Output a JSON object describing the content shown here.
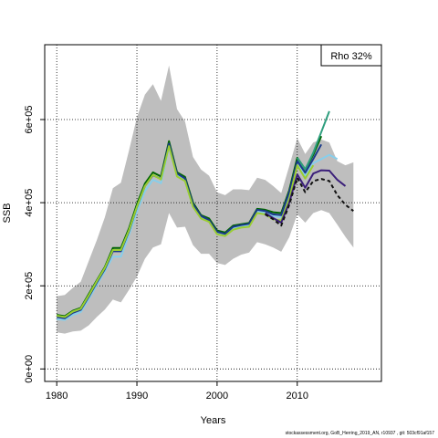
{
  "chart_data": {
    "type": "line",
    "xlabel": "Years",
    "ylabel": "SSB",
    "xlim": [
      1978.5,
      2020.5
    ],
    "ylim": [
      -30000,
      780000
    ],
    "x_ticks": [
      1980,
      1990,
      2000,
      2010
    ],
    "y_ticks": [
      {
        "value": 0,
        "label": "0e+00"
      },
      {
        "value": 200000,
        "label": "2e+05"
      },
      {
        "value": 400000,
        "label": "4e+05"
      },
      {
        "value": 600000,
        "label": "6e+05"
      }
    ],
    "grid": true,
    "legend": {
      "text": "Rho 32%",
      "position": "top-right"
    },
    "confidence_band": {
      "color": "#bebebe",
      "x": [
        1980,
        1981,
        1982,
        1983,
        1984,
        1985,
        1986,
        1987,
        1988,
        1989,
        1990,
        1991,
        1992,
        1993,
        1994,
        1995,
        1996,
        1997,
        1998,
        1999,
        2000,
        2001,
        2002,
        2003,
        2004,
        2005,
        2006,
        2007,
        2008,
        2009,
        2010,
        2011,
        2012,
        2013,
        2014,
        2015,
        2016,
        2017
      ],
      "upper": [
        175000,
        178000,
        195000,
        210000,
        260000,
        310000,
        365000,
        435000,
        448000,
        525000,
        605000,
        660000,
        685000,
        645000,
        730000,
        625000,
        595000,
        510000,
        480000,
        465000,
        425000,
        418000,
        432000,
        432000,
        430000,
        460000,
        455000,
        440000,
        423000,
        488000,
        555000,
        517000,
        545000,
        552000,
        545000,
        500000,
        490000,
        497000
      ],
      "lower": [
        88000,
        85000,
        90000,
        92000,
        105000,
        125000,
        143000,
        167000,
        160000,
        190000,
        222000,
        265000,
        292000,
        300000,
        375000,
        340000,
        342000,
        298000,
        277000,
        277000,
        255000,
        250000,
        265000,
        275000,
        280000,
        305000,
        300000,
        292000,
        282000,
        317000,
        372000,
        352000,
        375000,
        382000,
        375000,
        347000,
        318000,
        292000
      ]
    },
    "series": [
      {
        "color": "#006400",
        "style": "solid",
        "x": [
          1980,
          1981,
          1982,
          1983,
          1984,
          1985,
          1986,
          1987,
          1988,
          1989,
          1990,
          1991,
          1992,
          1993,
          1994,
          1995,
          1996,
          1997,
          1998,
          1999,
          2000,
          2001,
          2002,
          2003,
          2004,
          2005,
          2006,
          2007,
          2008,
          2009,
          2010,
          2011,
          2012,
          2013
        ],
        "values": [
          130000,
          127000,
          140000,
          147000,
          180000,
          213000,
          245000,
          291000,
          291000,
          338000,
          396000,
          446000,
          473000,
          463000,
          548000,
          473000,
          462000,
          400000,
          370000,
          362000,
          333000,
          328000,
          345000,
          348000,
          351000,
          385000,
          383000,
          377000,
          375000,
          430000,
          508000,
          480000,
          515000,
          560000
        ]
      },
      {
        "color": "#2e9e7e",
        "style": "solid",
        "x": [
          2010,
          2011,
          2012,
          2013,
          2014
        ],
        "values": [
          508000,
          480000,
          520000,
          570000,
          620000
        ]
      },
      {
        "color": "#87ceeb",
        "style": "solid",
        "x": [
          1980,
          1981,
          1982,
          1983,
          1984,
          1985,
          1986,
          1987,
          1988,
          1989,
          1990,
          1991,
          1992,
          1993,
          1994,
          1995,
          1996,
          1997,
          1998,
          1999,
          2000,
          2001,
          2002,
          2003,
          2004,
          2005,
          2006,
          2007,
          2008,
          2009,
          2010,
          2011,
          2012,
          2013,
          2014,
          2015
        ],
        "values": [
          120000,
          118000,
          130000,
          137000,
          168000,
          202000,
          235000,
          270000,
          270000,
          322000,
          378000,
          428000,
          455000,
          447000,
          535000,
          465000,
          453000,
          390000,
          365000,
          355000,
          327000,
          322000,
          338000,
          343000,
          346000,
          380000,
          375000,
          368000,
          365000,
          420000,
          492000,
          465000,
          495000,
          505000,
          515000,
          505000
        ]
      },
      {
        "color": "#1a3a8a",
        "style": "solid",
        "x": [
          1980,
          1981,
          1982,
          1983,
          1984,
          1985,
          1986,
          1987,
          1988,
          1989,
          1990,
          1991,
          1992,
          1993,
          1994,
          1995,
          1996,
          1997,
          1998,
          1999,
          2000,
          2001,
          2002,
          2003,
          2004,
          2005,
          2006,
          2007,
          2008,
          2009,
          2010,
          2011,
          2012,
          2013
        ],
        "values": [
          125000,
          122000,
          135000,
          142000,
          174000,
          208000,
          240000,
          283000,
          283000,
          331000,
          389000,
          440000,
          466000,
          457000,
          542000,
          470000,
          458000,
          396000,
          368000,
          358000,
          330000,
          325000,
          342000,
          346000,
          349000,
          383000,
          380000,
          372000,
          370000,
          425000,
          500000,
          472000,
          505000,
          540000
        ]
      },
      {
        "color": "#9acd32",
        "style": "solid",
        "x": [
          1980,
          1981,
          1982,
          1983,
          1984,
          1985,
          1986,
          1987,
          1988,
          1989,
          1990,
          1991,
          1992,
          1993,
          1994,
          1995,
          1996,
          1997,
          1998,
          1999,
          2000,
          2001,
          2002,
          2003,
          2004,
          2005,
          2006,
          2007,
          2008,
          2009,
          2010,
          2011,
          2012
        ],
        "values": [
          128000,
          125000,
          138000,
          145000,
          177000,
          211000,
          243000,
          286000,
          286000,
          333000,
          390000,
          440000,
          467000,
          456000,
          536000,
          463000,
          452000,
          390000,
          362000,
          354000,
          324000,
          320000,
          335000,
          340000,
          342000,
          375000,
          372000,
          360000,
          357000,
          410000,
          490000,
          458000,
          490000
        ]
      },
      {
        "color": "#3b1f7a",
        "style": "solid",
        "x": [
          2006,
          2007,
          2008,
          2009,
          2010,
          2011,
          2012,
          2013,
          2014,
          2015,
          2016
        ],
        "values": [
          375000,
          363000,
          352000,
          400000,
          468000,
          436000,
          470000,
          478000,
          477000,
          455000,
          440000
        ]
      },
      {
        "color": "#111111",
        "style": "dashed",
        "x": [
          2006,
          2007,
          2008,
          2009,
          2010,
          2011,
          2012,
          2013,
          2014,
          2015,
          2016,
          2017
        ],
        "values": [
          372000,
          360000,
          345000,
          395000,
          460000,
          425000,
          452000,
          457000,
          452000,
          418000,
          395000,
          380000
        ]
      }
    ]
  },
  "footer": "stockassessment.org, GoB_Herring_2019_AN, r10937 , git: 503cf91af157"
}
